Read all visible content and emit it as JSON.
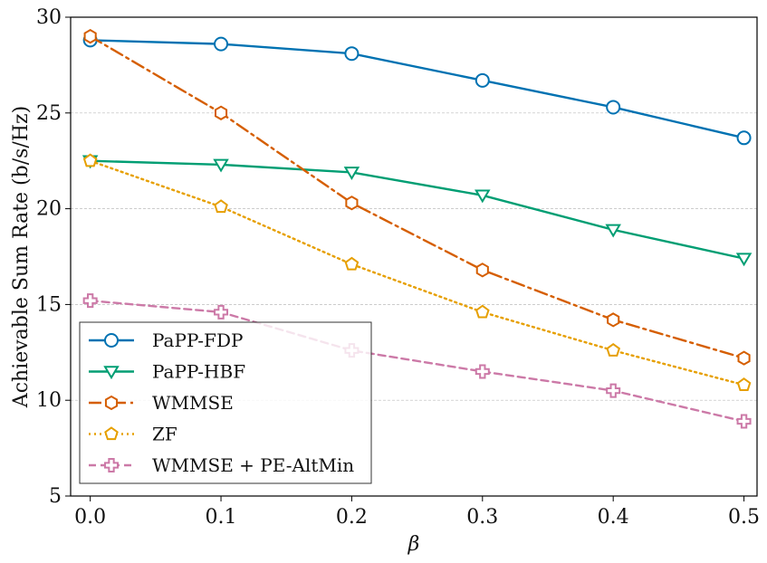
{
  "chart_data": {
    "type": "line",
    "title": "",
    "xlabel": "β",
    "ylabel": "Achievable Sum Rate (b/s/Hz)",
    "xlim": [
      -0.015,
      0.51
    ],
    "ylim": [
      5,
      30
    ],
    "x_ticks": [
      "0.0",
      "0.1",
      "0.2",
      "0.3",
      "0.4",
      "0.5"
    ],
    "y_ticks": [
      "5",
      "10",
      "15",
      "20",
      "25",
      "30"
    ],
    "grid": "horizontal dashed",
    "legend_position": "lower-left",
    "x": [
      0.0,
      0.1,
      0.2,
      0.3,
      0.4,
      0.5
    ],
    "series": [
      {
        "name": "PaPP-FDP",
        "color": "#0072B2",
        "marker": "circle",
        "line": "solid",
        "values": [
          28.8,
          28.6,
          28.1,
          26.7,
          25.3,
          23.7
        ]
      },
      {
        "name": "PaPP-HBF",
        "color": "#009E73",
        "marker": "triangle-down",
        "line": "solid",
        "values": [
          22.5,
          22.3,
          21.9,
          20.7,
          18.9,
          17.4
        ]
      },
      {
        "name": "WMMSE",
        "color": "#D55E00",
        "marker": "hexagon",
        "line": "dashdot",
        "values": [
          29.0,
          25.0,
          20.3,
          16.8,
          14.2,
          12.2
        ]
      },
      {
        "name": "ZF",
        "color": "#E69F00",
        "marker": "pentagon",
        "line": "dotted",
        "values": [
          22.5,
          20.1,
          17.1,
          14.6,
          12.6,
          10.8
        ]
      },
      {
        "name": "WMMSE + PE-AltMin",
        "color": "#CC79A7",
        "marker": "plus",
        "line": "dashed",
        "values": [
          15.2,
          14.6,
          12.6,
          11.5,
          10.5,
          8.9
        ]
      }
    ]
  }
}
